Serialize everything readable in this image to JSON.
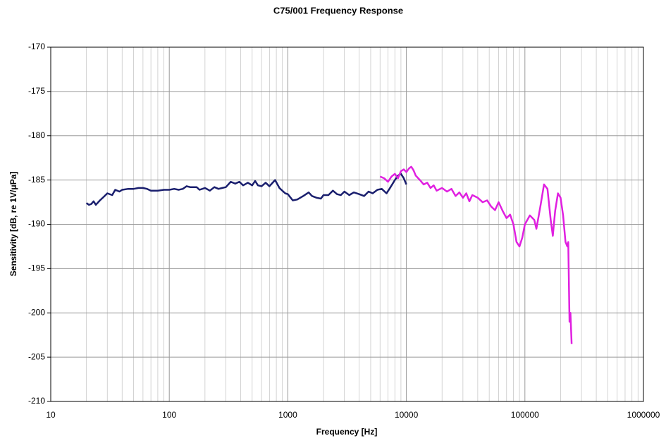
{
  "chart_data": {
    "type": "line",
    "title": "C75/001 Frequency Response",
    "x_label": "Frequency [Hz]",
    "y_label": "Sensitivity [dB, re 1V/μPa]",
    "xscale": "log",
    "xlim": [
      10,
      1000000
    ],
    "xticks": [
      10,
      100,
      1000,
      10000,
      100000,
      1000000
    ],
    "ylim": [
      -210,
      -170
    ],
    "yticks": [
      -170,
      -175,
      -180,
      -185,
      -190,
      -195,
      -200,
      -205,
      -210
    ],
    "grid": true,
    "series": [
      {
        "color": "#1a1f6e",
        "x": [
          20,
          21,
          22,
          23,
          24,
          26,
          28,
          30,
          33,
          35,
          38,
          40,
          45,
          50,
          55,
          60,
          65,
          70,
          80,
          90,
          100,
          110,
          120,
          130,
          140,
          150,
          170,
          180,
          200,
          220,
          240,
          260,
          280,
          300,
          330,
          360,
          390,
          420,
          460,
          500,
          530,
          560,
          600,
          650,
          700,
          780,
          850,
          950,
          1000,
          1100,
          1200,
          1350,
          1500,
          1600,
          1750,
          1900,
          2000,
          2200,
          2400,
          2600,
          2800,
          3000,
          3300,
          3600,
          4000,
          4400,
          4800,
          5200,
          5700,
          6200,
          6800,
          7200,
          8000,
          8500,
          9000,
          9500,
          10000
        ],
        "values": [
          -187.6,
          -187.8,
          -187.7,
          -187.4,
          -187.8,
          -187.3,
          -186.9,
          -186.5,
          -186.7,
          -186.1,
          -186.3,
          -186.1,
          -186.0,
          -186.0,
          -185.9,
          -185.9,
          -186.0,
          -186.2,
          -186.2,
          -186.1,
          -186.1,
          -186.0,
          -186.1,
          -186.0,
          -185.7,
          -185.8,
          -185.8,
          -186.1,
          -185.9,
          -186.2,
          -185.8,
          -186.0,
          -185.9,
          -185.8,
          -185.2,
          -185.4,
          -185.2,
          -185.6,
          -185.3,
          -185.6,
          -185.1,
          -185.6,
          -185.7,
          -185.3,
          -185.7,
          -185.0,
          -185.9,
          -186.5,
          -186.6,
          -187.3,
          -187.2,
          -186.8,
          -186.4,
          -186.8,
          -187.0,
          -187.1,
          -186.7,
          -186.7,
          -186.2,
          -186.6,
          -186.7,
          -186.3,
          -186.7,
          -186.4,
          -186.6,
          -186.8,
          -186.3,
          -186.5,
          -186.1,
          -186.0,
          -186.5,
          -186.0,
          -185.0,
          -184.5,
          -184.3,
          -184.8,
          -185.5
        ]
      },
      {
        "color": "#e020e0",
        "x": [
          6000,
          6500,
          7000,
          7500,
          8000,
          8500,
          9000,
          9500,
          10000,
          10500,
          11000,
          11500,
          12000,
          13000,
          14000,
          15000,
          16000,
          17000,
          18000,
          20000,
          22000,
          24000,
          26000,
          28000,
          30000,
          32000,
          34000,
          36000,
          40000,
          44000,
          48000,
          52000,
          56000,
          60000,
          65000,
          70000,
          75000,
          80000,
          85000,
          90000,
          95000,
          100000,
          110000,
          120000,
          125000,
          135000,
          145000,
          155000,
          165000,
          172000,
          180000,
          190000,
          200000,
          210000,
          220000,
          228000,
          232000,
          238000,
          242000,
          248000
        ],
        "values": [
          -184.6,
          -184.8,
          -185.2,
          -184.6,
          -184.3,
          -184.8,
          -184.0,
          -183.8,
          -184.1,
          -183.7,
          -183.5,
          -183.9,
          -184.5,
          -185.0,
          -185.5,
          -185.3,
          -185.9,
          -185.6,
          -186.2,
          -185.9,
          -186.3,
          -186.0,
          -186.8,
          -186.4,
          -187.0,
          -186.5,
          -187.4,
          -186.7,
          -187.0,
          -187.5,
          -187.3,
          -188.0,
          -188.4,
          -187.5,
          -188.5,
          -189.3,
          -188.9,
          -190.0,
          -192.0,
          -192.5,
          -191.5,
          -190.0,
          -189.0,
          -189.5,
          -190.5,
          -188.0,
          -185.5,
          -186.0,
          -189.5,
          -191.3,
          -188.5,
          -186.5,
          -187.0,
          -189.0,
          -192.0,
          -192.5,
          -192.0,
          -201.0,
          -200.0,
          -203.5
        ]
      }
    ]
  }
}
